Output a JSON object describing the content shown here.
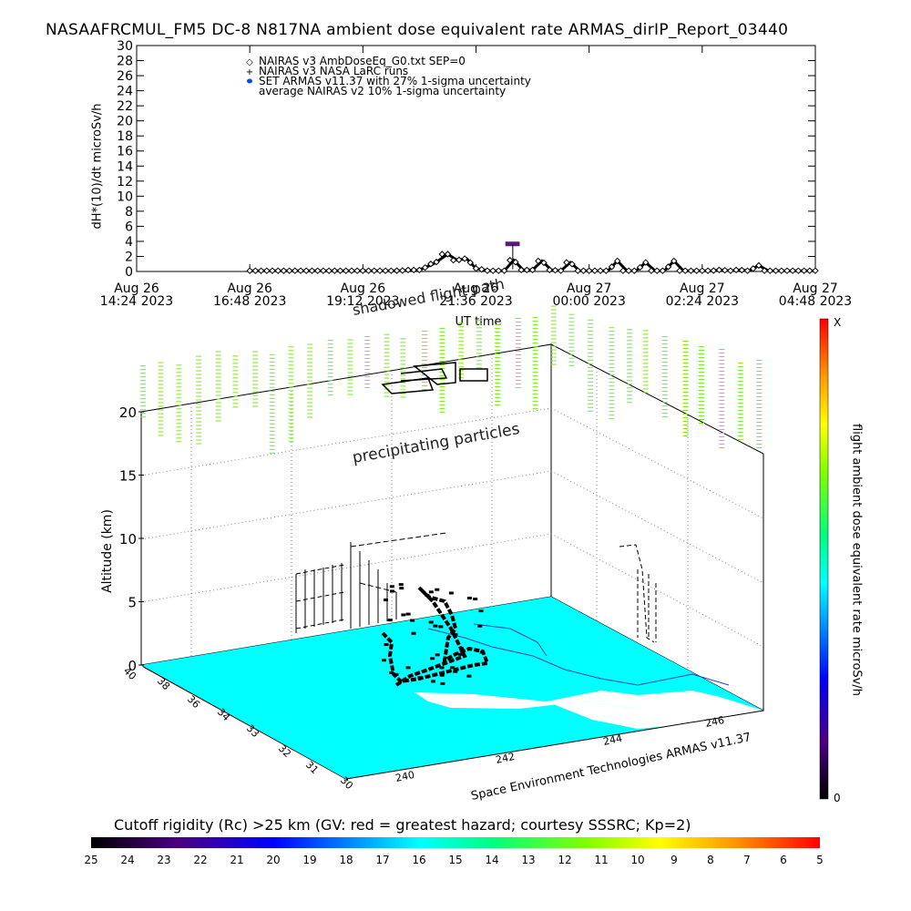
{
  "title": "NASAAFRCMUL_FM5 DC-8   N817NA ambient dose equivalent rate ARMAS_dirIP_Report_03440",
  "chart_data": [
    {
      "type": "line",
      "ylabel": "dH*(10)/dt microSv/h",
      "xlabel": "UT time",
      "ylim": [
        0,
        30
      ],
      "yticks": [
        "0",
        "2",
        "4",
        "6",
        "8",
        "10",
        "12",
        "14",
        "16",
        "18",
        "20",
        "22",
        "24",
        "26",
        "28",
        "30"
      ],
      "xticks": [
        {
          "line1": "Aug 26",
          "line2": "14:24 2023"
        },
        {
          "line1": "Aug 26",
          "line2": "16:48 2023"
        },
        {
          "line1": "Aug 26",
          "line2": "19:12 2023"
        },
        {
          "line1": "Aug 26",
          "line2": "21:36 2023"
        },
        {
          "line1": "Aug 27",
          "line2": "00:00 2023"
        },
        {
          "line1": "Aug 27",
          "line2": "02:24 2023"
        },
        {
          "line1": "Aug 27",
          "line2": "04:48 2023"
        }
      ],
      "legend": [
        {
          "symbol": "◇",
          "label": "NAIRAS v3 AmbDoseEq_G0.txt SEP=0"
        },
        {
          "symbol": "+",
          "label": "NAIRAS v3 NASA LaRC runs"
        },
        {
          "symbol": "●",
          "label": "SET ARMAS v11.37 with 27% 1-sigma uncertainty"
        },
        {
          "symbol": "",
          "label": "average NAIRAS v2 10% 1-sigma uncertainty"
        }
      ],
      "legend_position": "top-left",
      "series": [
        {
          "name": "NAIRAS v3 AmbDoseEq_G0.txt SEP=0",
          "x_hours": [
            2.4,
            4.0,
            5.5,
            6.0,
            6.3,
            6.6,
            6.8,
            7.0,
            7.2,
            7.5,
            7.8,
            8.0,
            8.2,
            8.4,
            8.6,
            8.8,
            9.0,
            9.2,
            9.4,
            9.6,
            9.8,
            10.0,
            10.2,
            10.4,
            10.6,
            10.8,
            11.0,
            11.2,
            11.4,
            11.6,
            11.8,
            12.0,
            12.2,
            12.4,
            12.6,
            12.8,
            13.0,
            13.2,
            13.4,
            13.8,
            14.0,
            14.2,
            14.4
          ],
          "values": [
            0.1,
            0.1,
            0.1,
            0.2,
            1.0,
            2.3,
            1.5,
            1.7,
            0.4,
            0.1,
            0.1,
            1.5,
            0.2,
            0.2,
            1.4,
            0.2,
            0.1,
            1.2,
            0.1,
            0.1,
            0.1,
            0.1,
            1.4,
            0.1,
            0.1,
            1.2,
            0.1,
            0.1,
            1.4,
            0.1,
            0.1,
            0.1,
            0.1,
            0.2,
            0.1,
            0.2,
            0.1,
            0.8,
            0.1,
            0.1,
            0.1,
            0.1,
            0.1
          ]
        },
        {
          "name": "SET ARMAS v11.37 with 27% 1-sigma uncertainty",
          "x_hours": [
            7.9,
            8.05
          ],
          "values": [
            3.6,
            3.6
          ]
        }
      ]
    },
    {
      "type": "scatter",
      "ylabel": "Altitude (km)",
      "zticks": [
        "0",
        "5",
        "10",
        "15",
        "20"
      ],
      "lat_ticks": [
        "30",
        "31",
        "32",
        "33",
        "34",
        "36",
        "38",
        "40"
      ],
      "lon_ticks": [
        "240",
        "242",
        "244",
        "246"
      ],
      "annotations": [
        "precipitating particles",
        "shadowed flight path"
      ],
      "credit": "Space Environment Technologies ARMAS v11.37"
    }
  ],
  "colorbar_right": {
    "label": "flight ambient dose equivalent rate microSv/h",
    "top": "X",
    "bottom": "0"
  },
  "colorbar_bottom": {
    "label": "Cutoff rigidity (Rc) >25 km (GV: red = greatest hazard; courtesy SSSRC; Kp=2)",
    "ticks": [
      "25",
      "24",
      "23",
      "22",
      "21",
      "20",
      "19",
      "18",
      "17",
      "16",
      "15",
      "14",
      "13",
      "12",
      "11",
      "10",
      "9",
      "8",
      "7",
      "6",
      "5"
    ]
  },
  "colors": {
    "ocean": "#00ffff",
    "land": "#ffffff",
    "precip": "#7fe61e",
    "armas": "#5a1a7a",
    "legend_dot": "#0047ff"
  }
}
